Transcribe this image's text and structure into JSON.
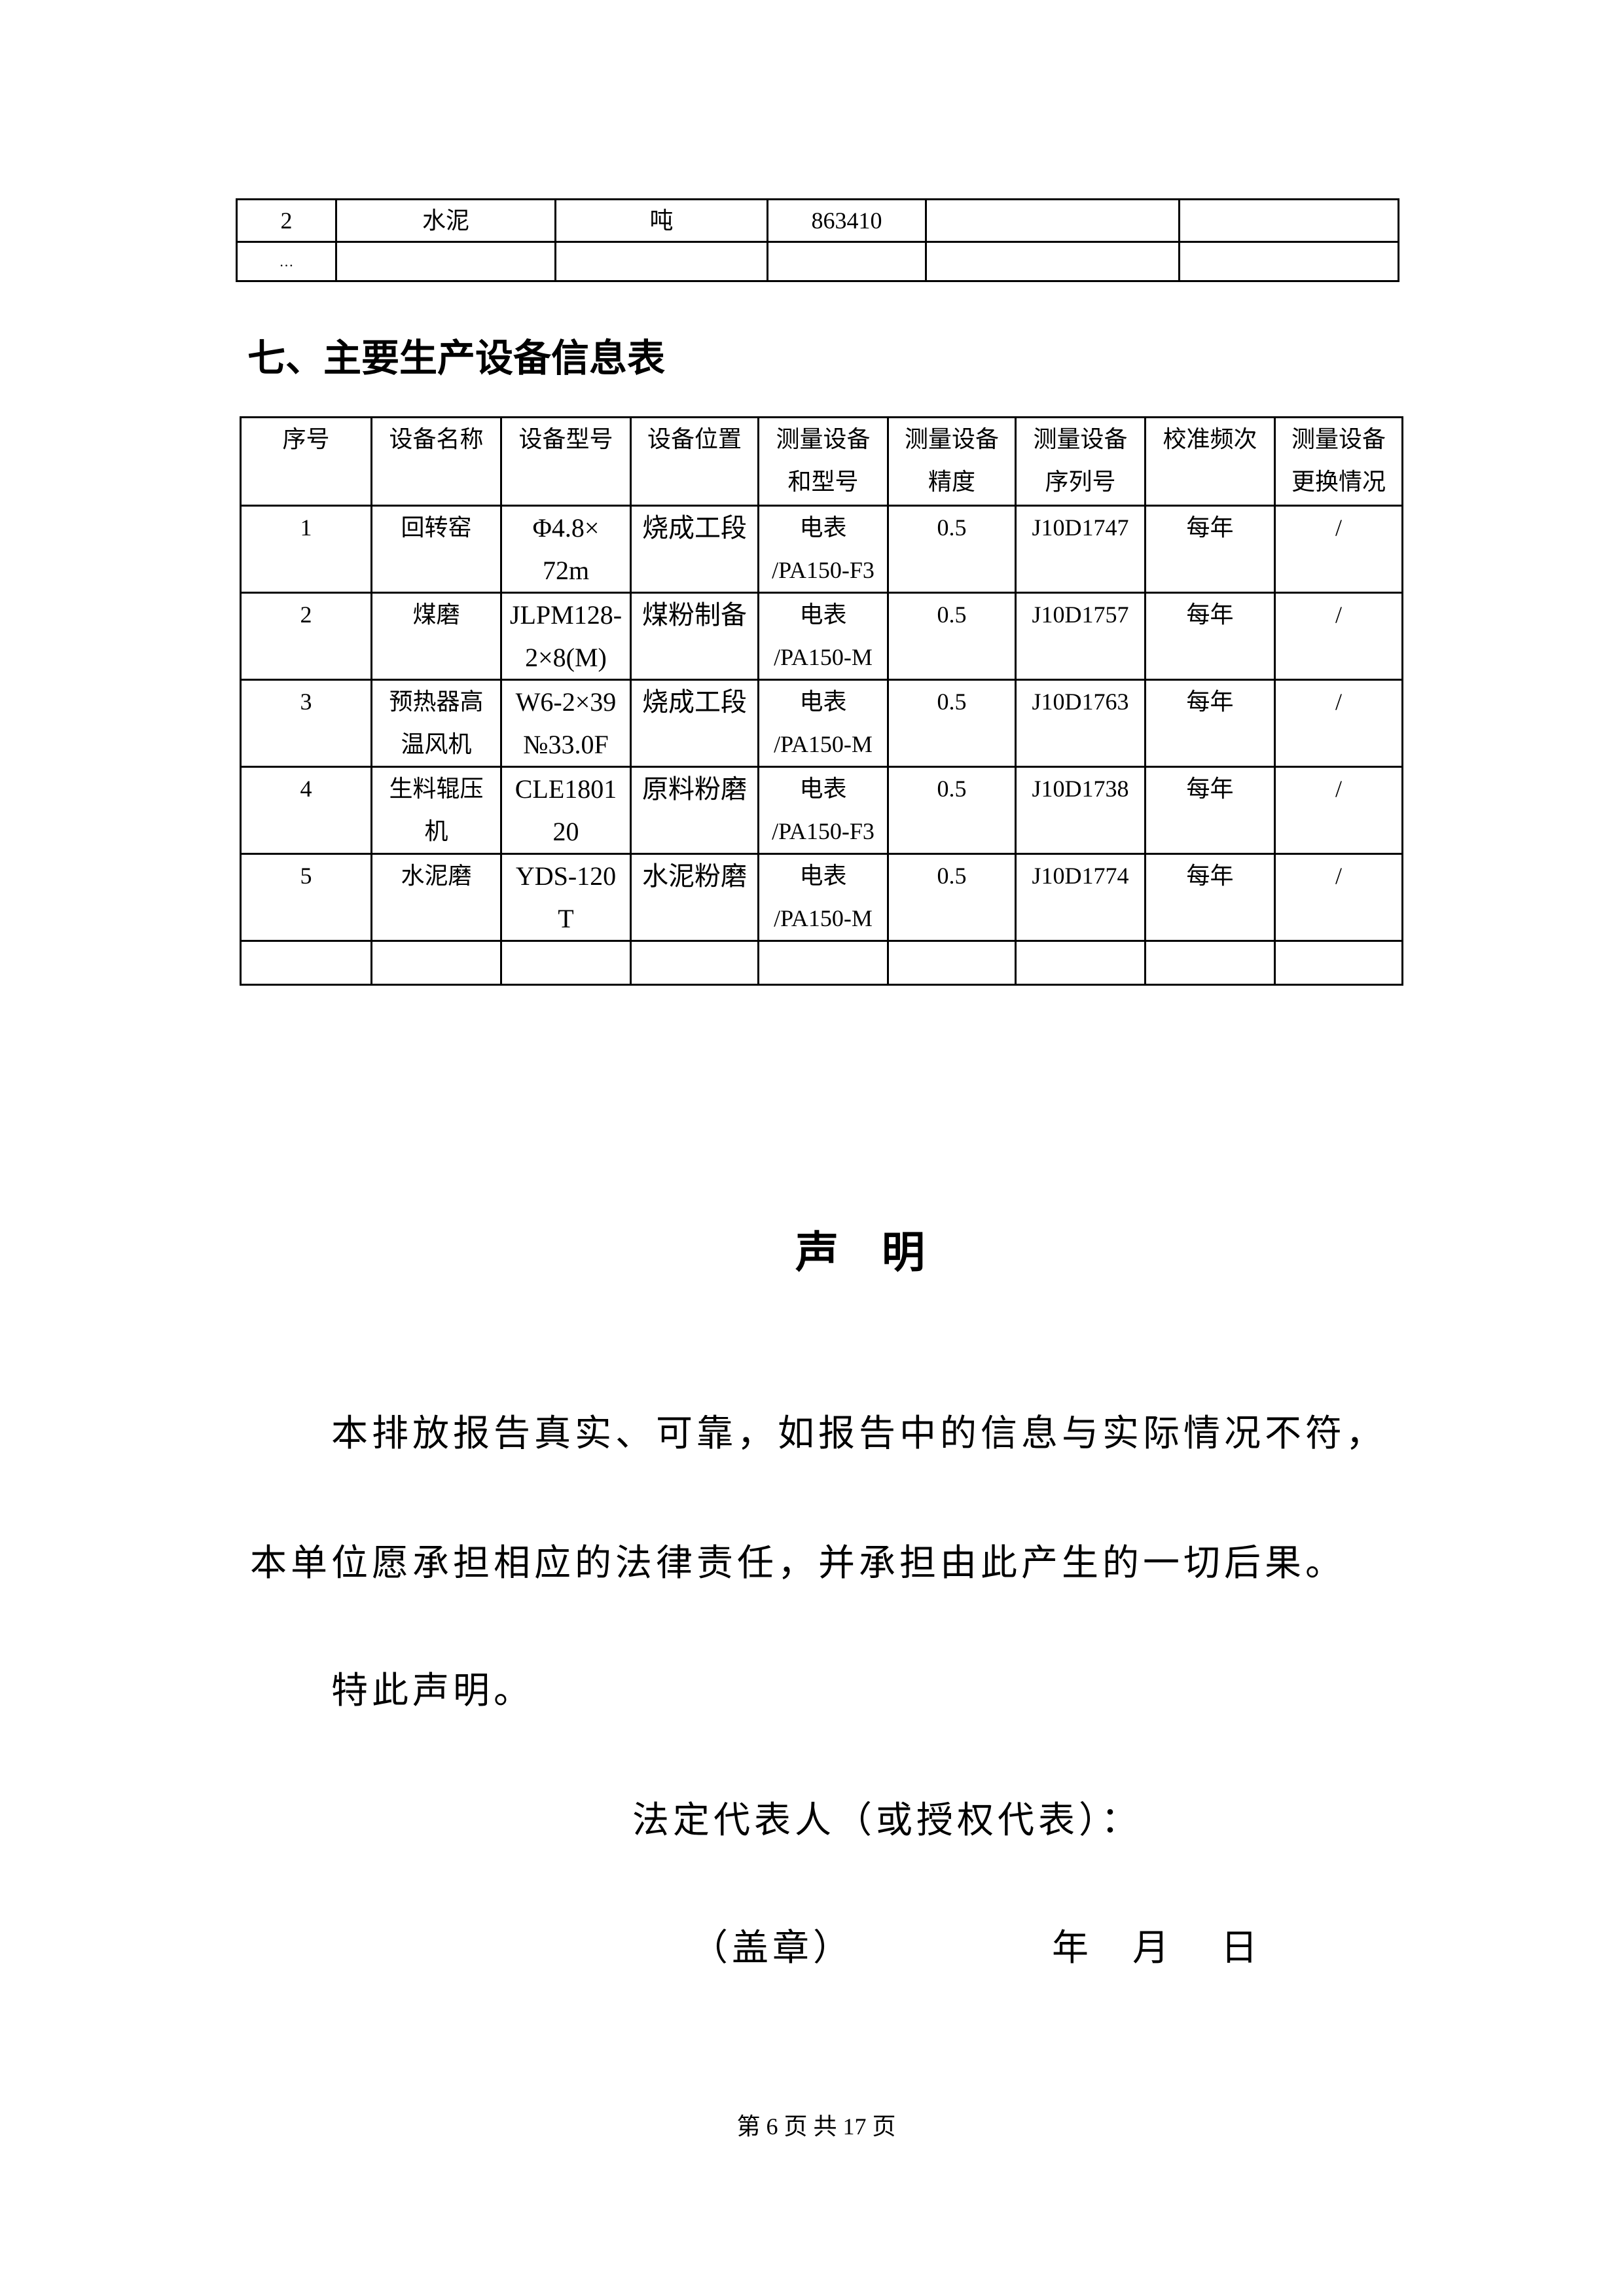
{
  "prev_table": {
    "rows": [
      [
        "2",
        "水泥",
        "吨",
        "863410",
        "",
        ""
      ],
      [
        "…",
        "",
        "",
        "",
        "",
        ""
      ]
    ]
  },
  "section_title": "七、主要生产设备信息表",
  "equipment_table": {
    "headers": [
      [
        "序号",
        ""
      ],
      [
        "设备名称",
        ""
      ],
      [
        "设备型号",
        ""
      ],
      [
        "设备位置",
        ""
      ],
      [
        "测量设备",
        "和型号"
      ],
      [
        "测量设备",
        "精度"
      ],
      [
        "测量设备",
        "序列号"
      ],
      [
        "校准频次",
        ""
      ],
      [
        "测量设备",
        "更换情况"
      ]
    ],
    "rows": [
      [
        [
          "1",
          ""
        ],
        [
          "回转窑",
          ""
        ],
        [
          "Φ4.8×",
          "72m"
        ],
        [
          "烧成工段",
          ""
        ],
        [
          "电表",
          "/PA150-F3"
        ],
        [
          "0.5",
          ""
        ],
        [
          "J10D1747",
          ""
        ],
        [
          "每年",
          ""
        ],
        [
          "/",
          ""
        ]
      ],
      [
        [
          "2",
          ""
        ],
        [
          "煤磨",
          ""
        ],
        [
          "JLPM128-",
          "2×8(M)"
        ],
        [
          "煤粉制备",
          ""
        ],
        [
          "电表",
          "/PA150-M"
        ],
        [
          "0.5",
          ""
        ],
        [
          "J10D1757",
          ""
        ],
        [
          "每年",
          ""
        ],
        [
          "/",
          ""
        ]
      ],
      [
        [
          "3",
          ""
        ],
        [
          "预热器高",
          "温风机"
        ],
        [
          "W6-2×39",
          "№33.0F"
        ],
        [
          "烧成工段",
          ""
        ],
        [
          "电表",
          "/PA150-M"
        ],
        [
          "0.5",
          ""
        ],
        [
          "J10D1763",
          ""
        ],
        [
          "每年",
          ""
        ],
        [
          "/",
          ""
        ]
      ],
      [
        [
          "4",
          ""
        ],
        [
          "生料辊压",
          "机"
        ],
        [
          "CLE1801",
          "20"
        ],
        [
          "原料粉磨",
          ""
        ],
        [
          "电表",
          "/PA150-F3"
        ],
        [
          "0.5",
          ""
        ],
        [
          "J10D1738",
          ""
        ],
        [
          "每年",
          ""
        ],
        [
          "/",
          ""
        ]
      ],
      [
        [
          "5",
          ""
        ],
        [
          "水泥磨",
          ""
        ],
        [
          "YDS-120",
          "T"
        ],
        [
          "水泥粉磨",
          ""
        ],
        [
          "电表",
          "/PA150-M"
        ],
        [
          "0.5",
          ""
        ],
        [
          "J10D1774",
          ""
        ],
        [
          "每年",
          ""
        ],
        [
          "/",
          ""
        ]
      ],
      [
        [
          "",
          ""
        ],
        [
          "",
          ""
        ],
        [
          "",
          ""
        ],
        [
          "",
          ""
        ],
        [
          "",
          ""
        ],
        [
          "",
          ""
        ],
        [
          "",
          ""
        ],
        [
          "",
          ""
        ],
        [
          "",
          ""
        ]
      ]
    ]
  },
  "declaration": {
    "title": "声　明",
    "para1": "本排放报告真实、可靠，如报告中的信息与实际情况不符，",
    "para2": "本单位愿承担相应的法律责任，并承担由此产生的一切后果。",
    "para3": "特此声明。",
    "representative": "法定代表人（或授权代表）：",
    "seal": "（盖章）",
    "year": "年",
    "month": "月",
    "day": "日"
  },
  "footer": "第 6 页 共 17 页"
}
